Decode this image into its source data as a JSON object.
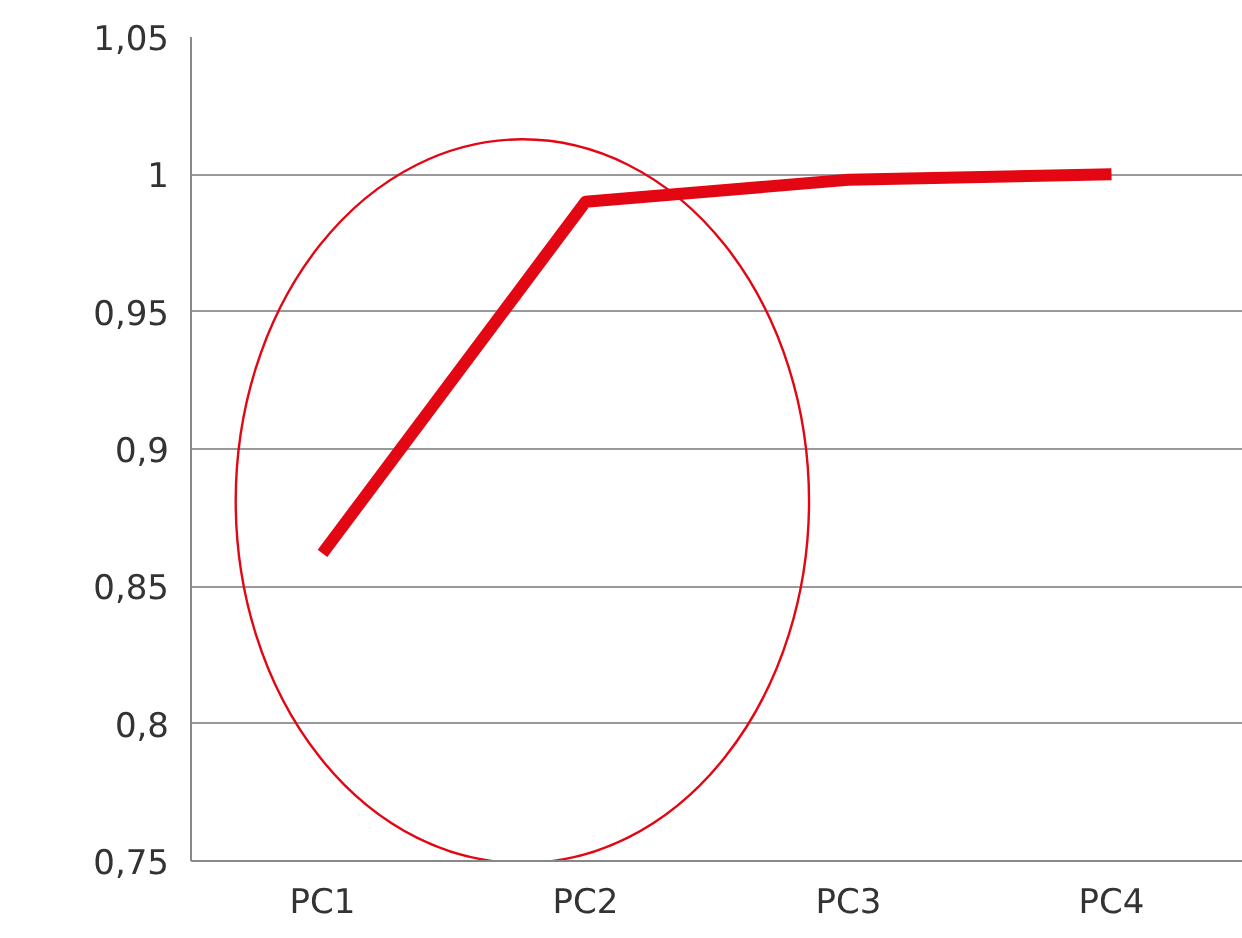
{
  "chart_data": {
    "type": "line",
    "categories": [
      "PC1",
      "PC2",
      "PC3",
      "PC4"
    ],
    "series": [
      {
        "color": "#e30613",
        "values": [
          0.862,
          0.99,
          0.998,
          1.0
        ]
      }
    ],
    "ylim": [
      0.75,
      1.05
    ],
    "yticks": [
      {
        "value": 0.75,
        "label": "0,75"
      },
      {
        "value": 0.8,
        "label": "0,8"
      },
      {
        "value": 0.85,
        "label": "0,85"
      },
      {
        "value": 0.9,
        "label": "0,9"
      },
      {
        "value": 0.95,
        "label": "0,95"
      },
      1,
      {
        "value": 1.05,
        "label": "1,05"
      }
    ],
    "grid": "y",
    "marker": "none",
    "line_style": "solid"
  }
}
